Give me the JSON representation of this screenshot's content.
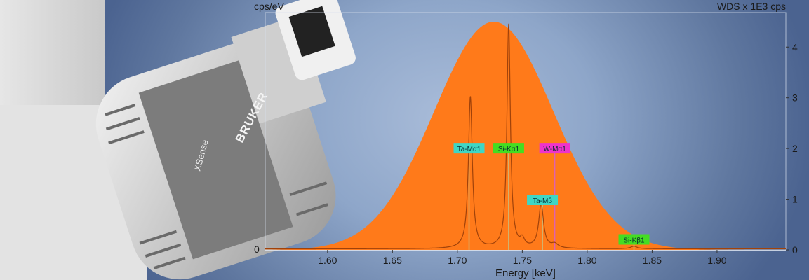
{
  "product_branding": {
    "brand": "BRUKER",
    "model": "XSense"
  },
  "chart_data": {
    "type": "area",
    "xlabel": "Energy [keV]",
    "ylabel_left": "cps/eV",
    "ylabel_right": "WDS x 1E3 cps",
    "xlim": [
      1.552,
      1.953
    ],
    "ylim": [
      0,
      4.68
    ],
    "x_ticks": [
      "1.60",
      "1.65",
      "1.70",
      "1.75",
      "1.80",
      "1.85",
      "1.90"
    ],
    "y_ticks": [
      "0",
      "1",
      "2",
      "3",
      "4"
    ],
    "grid": false,
    "eds_spectrum": {
      "shape": "gaussian",
      "center": 1.728,
      "amplitude": 4.5,
      "sigma": 0.046,
      "color": "#ff7a1a"
    },
    "wds_spectrum": {
      "color": "#a0420a",
      "peaks": [
        {
          "energy": 1.71,
          "height": 3.0,
          "width": 0.0018
        },
        {
          "energy": 1.7395,
          "height": 4.42,
          "width": 0.0016
        },
        {
          "energy": 1.75,
          "height": 0.15,
          "width": 0.002
        },
        {
          "energy": 1.7645,
          "height": 0.88,
          "width": 0.0022
        },
        {
          "energy": 1.775,
          "height": 0.08,
          "width": 0.003
        },
        {
          "energy": 1.836,
          "height": 0.05,
          "width": 0.003
        }
      ]
    },
    "annotations": [
      {
        "label": "Ta-Mα1",
        "energy": 1.709,
        "label_y": 2.0,
        "color": "#3fd6c4",
        "line_color": "#c8c080"
      },
      {
        "label": "Si-Kα1",
        "energy": 1.7395,
        "label_y": 2.0,
        "color": "#44dd22",
        "line_color": "#c8c080"
      },
      {
        "label": "W-Mα1",
        "energy": 1.775,
        "label_y": 2.0,
        "color": "#ee33cc",
        "line_color": "#e060b0"
      },
      {
        "label": "Ta-Mβ",
        "energy": 1.7655,
        "label_y": 0.98,
        "color": "#3fd6c4",
        "line_color": "#c8c080"
      },
      {
        "label": "Si-Kβ1",
        "energy": 1.836,
        "label_y": 0.2,
        "color": "#44dd22",
        "line_color": "#c8c080"
      }
    ]
  }
}
